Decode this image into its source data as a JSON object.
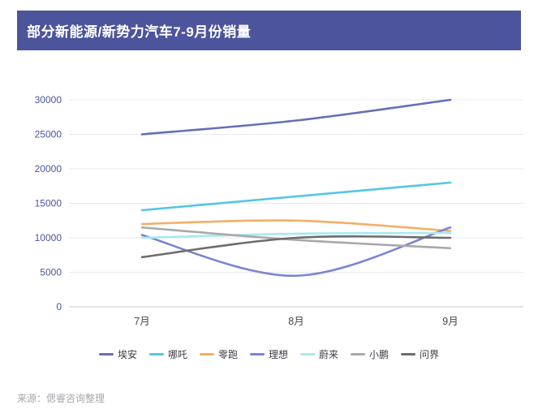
{
  "title": "部分新能源/新势力汽车7-9月份销量",
  "source": "来源：偲睿咨询整理",
  "colors": {
    "title_bar": "#4c549c",
    "grid": "#e9e9f0",
    "axis": "#c9c9d2",
    "y_tick_label": "#4b55a1",
    "x_tick_label": "#46464f"
  },
  "chart_data": {
    "type": "line",
    "smooth": true,
    "grid": true,
    "legend_position": "bottom",
    "x": [
      "7月",
      "8月",
      "9月"
    ],
    "yticks": [
      0,
      5000,
      10000,
      15000,
      20000,
      25000,
      30000
    ],
    "ylim": [
      0,
      30000
    ],
    "title": "部分新能源/新势力汽车7-9月份销量",
    "xlabel": "",
    "ylabel": "",
    "series": [
      {
        "name": "埃安",
        "color": "#6470b4",
        "values": [
          25000,
          27000,
          30000
        ]
      },
      {
        "name": "哪吒",
        "color": "#53c6e4",
        "values": [
          14000,
          16000,
          18000
        ]
      },
      {
        "name": "零跑",
        "color": "#f5ae66",
        "values": [
          12000,
          12500,
          11000
        ]
      },
      {
        "name": "理想",
        "color": "#7a84d2",
        "values": [
          10400,
          4500,
          11500
        ]
      },
      {
        "name": "蔚来",
        "color": "#a8e9f2",
        "values": [
          10000,
          10600,
          10700
        ]
      },
      {
        "name": "小鹏",
        "color": "#a9a9ab",
        "values": [
          11500,
          9700,
          8500
        ]
      },
      {
        "name": "问界",
        "color": "#6d6d70",
        "values": [
          7200,
          10000,
          10000
        ]
      }
    ]
  }
}
